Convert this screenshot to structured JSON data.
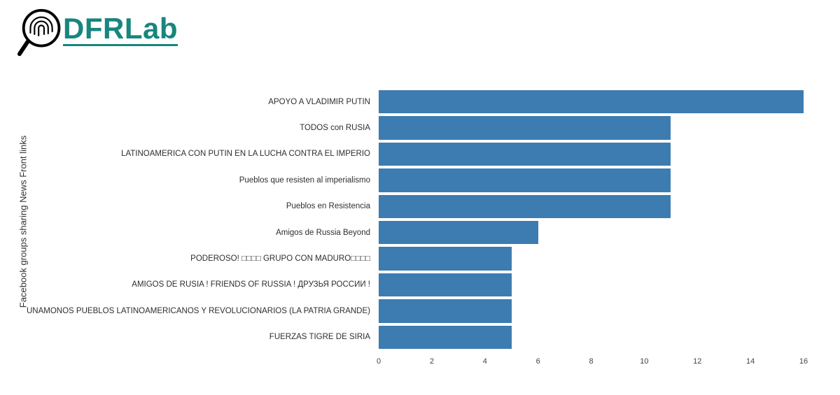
{
  "logo": {
    "text": "DFRLab",
    "color": "#17867E",
    "icon": "magnifier-fingerprint-icon"
  },
  "chart_data": {
    "type": "bar",
    "orientation": "horizontal",
    "title": "",
    "xlabel": "",
    "ylabel": "Facebook groups sharing News Front links",
    "categories": [
      "APOYO A VLADIMIR PUTIN",
      "TODOS con RUSIA",
      "LATINOAMERICA CON PUTIN EN LA LUCHA CONTRA EL IMPERIO",
      "Pueblos que resisten al imperialismo",
      "Pueblos en Resistencia",
      "Amigos de Russia Beyond",
      "PODEROSO! □□□□ GRUPO CON MADURO□□□□",
      "AMIGOS DE RUSIA ! FRIENDS OF RUSSIA ! ДРУЗЬЯ РОССИИ !",
      "UNAMONOS PUEBLOS LATINOAMERICANOS Y REVOLUCIONARIOS (LA PATRIA GRANDE)",
      "FUERZAS TIGRE DE SIRIA"
    ],
    "values": [
      16,
      11,
      11,
      11,
      11,
      6,
      5,
      5,
      5,
      5
    ],
    "xlim": [
      0,
      16
    ],
    "xticks": [
      0,
      2,
      4,
      6,
      8,
      10,
      12,
      14,
      16
    ],
    "bar_color": "#3d7cb0",
    "grid": false,
    "legend": false
  }
}
